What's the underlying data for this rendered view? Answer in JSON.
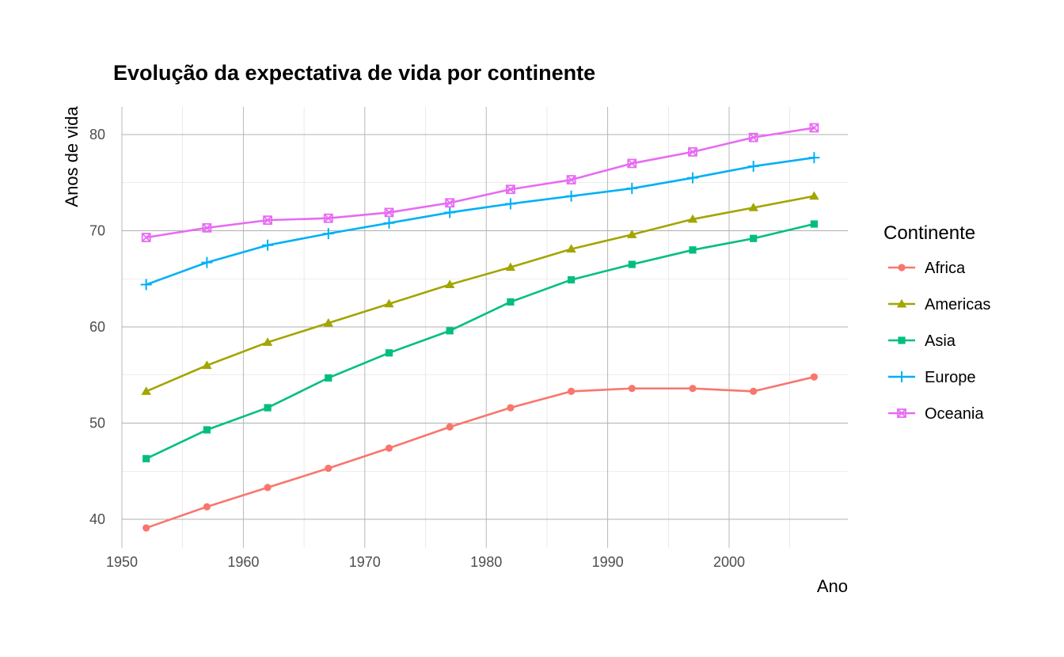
{
  "chart_data": {
    "type": "line",
    "title": "Evolução da expectativa de vida por continente",
    "xlabel": "Ano",
    "ylabel": "Anos de vida",
    "xlim": [
      1950,
      2009
    ],
    "ylim": [
      37,
      83
    ],
    "x_ticks": [
      1950,
      1960,
      1970,
      1980,
      1990,
      2000
    ],
    "y_ticks": [
      40,
      50,
      60,
      70,
      80
    ],
    "grid": true,
    "legend_title": "Continente",
    "legend_position": "right",
    "x": [
      1952,
      1957,
      1962,
      1967,
      1972,
      1977,
      1982,
      1987,
      1992,
      1997,
      2002,
      2007
    ],
    "series": [
      {
        "name": "Africa",
        "color": "#F8766D",
        "marker": "circle",
        "values": [
          39.1,
          41.3,
          43.3,
          45.3,
          47.4,
          49.6,
          51.6,
          53.3,
          53.6,
          53.6,
          53.3,
          54.8
        ]
      },
      {
        "name": "Americas",
        "color": "#A3A500",
        "marker": "triangle",
        "values": [
          53.3,
          56.0,
          58.4,
          60.4,
          62.4,
          64.4,
          66.2,
          68.1,
          69.6,
          71.2,
          72.4,
          73.6
        ]
      },
      {
        "name": "Asia",
        "color": "#00BF7D",
        "marker": "square",
        "values": [
          46.3,
          49.3,
          51.6,
          54.7,
          57.3,
          59.6,
          62.6,
          64.9,
          66.5,
          68.0,
          69.2,
          70.7
        ]
      },
      {
        "name": "Europe",
        "color": "#00B0F6",
        "marker": "plus",
        "values": [
          64.4,
          66.7,
          68.5,
          69.7,
          70.8,
          71.9,
          72.8,
          73.6,
          74.4,
          75.5,
          76.7,
          77.6
        ]
      },
      {
        "name": "Oceania",
        "color": "#E76BF3",
        "marker": "square-cross",
        "values": [
          69.3,
          70.3,
          71.1,
          71.3,
          71.9,
          72.9,
          74.3,
          75.3,
          77.0,
          78.2,
          79.7,
          80.7
        ]
      }
    ]
  }
}
